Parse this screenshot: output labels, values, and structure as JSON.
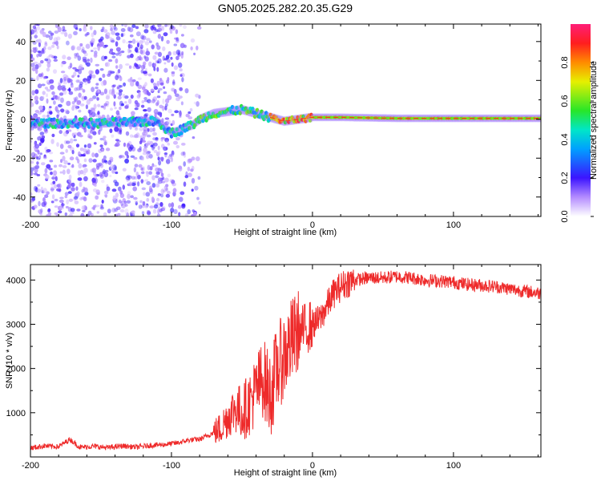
{
  "title": "GN05.2025.282.20.35.G29",
  "colors": {
    "snr_line": "#ee2a2a",
    "axis": "#000000",
    "background": "#ffffff"
  },
  "chart_data": [
    {
      "type": "heatmap",
      "xlabel": "Height of straight line (km)",
      "ylabel": "Frequency (Hz)",
      "xlim": [
        -200,
        162
      ],
      "ylim": [
        -50,
        49
      ],
      "xticks": [
        -200,
        -100,
        0,
        100
      ],
      "xtick_labels": [
        "-200",
        "-100",
        "0",
        "100"
      ],
      "yticks": [
        -40,
        -20,
        0,
        20,
        40
      ],
      "ytick_labels": [
        "-40",
        "-20",
        "0",
        "20",
        "40"
      ],
      "ridge": {
        "description_points_km_hz": [
          [
            -200,
            -2
          ],
          [
            -150,
            -2
          ],
          [
            -110,
            -1
          ],
          [
            -100,
            -7
          ],
          [
            -95,
            -6
          ],
          [
            -90,
            -4
          ],
          [
            -85,
            -3
          ],
          [
            -80,
            0
          ],
          [
            -70,
            3
          ],
          [
            -60,
            4
          ],
          [
            -50,
            5
          ],
          [
            -40,
            3
          ],
          [
            -30,
            1
          ],
          [
            -20,
            -1
          ],
          [
            -10,
            0
          ],
          [
            0,
            1
          ],
          [
            20,
            1
          ],
          [
            60,
            0.5
          ],
          [
            100,
            0.5
          ],
          [
            160,
            0.5
          ]
        ],
        "peak_amplitude_start_km": -30
      },
      "noise_region_km": [
        -200,
        -90
      ],
      "colorbar": {
        "label": "Normalized spectral amplitude",
        "range": [
          0,
          1
        ],
        "ticks": [
          0.0,
          0.2,
          0.4,
          0.6,
          0.8
        ],
        "tick_labels": [
          "0.0",
          "0.2",
          "0.4",
          "0.6",
          "0.8"
        ]
      }
    },
    {
      "type": "line",
      "xlabel": "Height of straight line (km)",
      "ylabel": "SNR (10 * v/v)",
      "xlim": [
        -200,
        162
      ],
      "ylim": [
        0,
        4350
      ],
      "xticks": [
        -200,
        -100,
        0,
        100
      ],
      "xtick_labels": [
        "-200",
        "-100",
        "0",
        "100"
      ],
      "yticks": [
        1000,
        2000,
        3000,
        4000
      ],
      "ytick_labels": [
        "1000",
        "2000",
        "3000",
        "4000"
      ],
      "series": [
        {
          "name": "SNR",
          "x": [
            -200,
            -190,
            -180,
            -172,
            -165,
            -155,
            -145,
            -135,
            -125,
            -115,
            -105,
            -95,
            -88,
            -80,
            -72,
            -65,
            -60,
            -55,
            -50,
            -45,
            -40,
            -35,
            -30,
            -25,
            -20,
            -15,
            -10,
            -5,
            0,
            5,
            10,
            15,
            20,
            25,
            30,
            40,
            50,
            60,
            70,
            80,
            90,
            100,
            110,
            120,
            130,
            140,
            150,
            162
          ],
          "y": [
            200,
            250,
            230,
            400,
            220,
            240,
            210,
            250,
            220,
            260,
            280,
            320,
            380,
            400,
            520,
            650,
            900,
            1100,
            1000,
            1200,
            1500,
            1800,
            1400,
            2000,
            2300,
            2600,
            2800,
            2900,
            3000,
            3100,
            3400,
            3700,
            3850,
            3950,
            4000,
            4050,
            4050,
            4080,
            4050,
            4000,
            3980,
            3950,
            3900,
            3880,
            3850,
            3800,
            3750,
            3700
          ]
        }
      ]
    }
  ]
}
